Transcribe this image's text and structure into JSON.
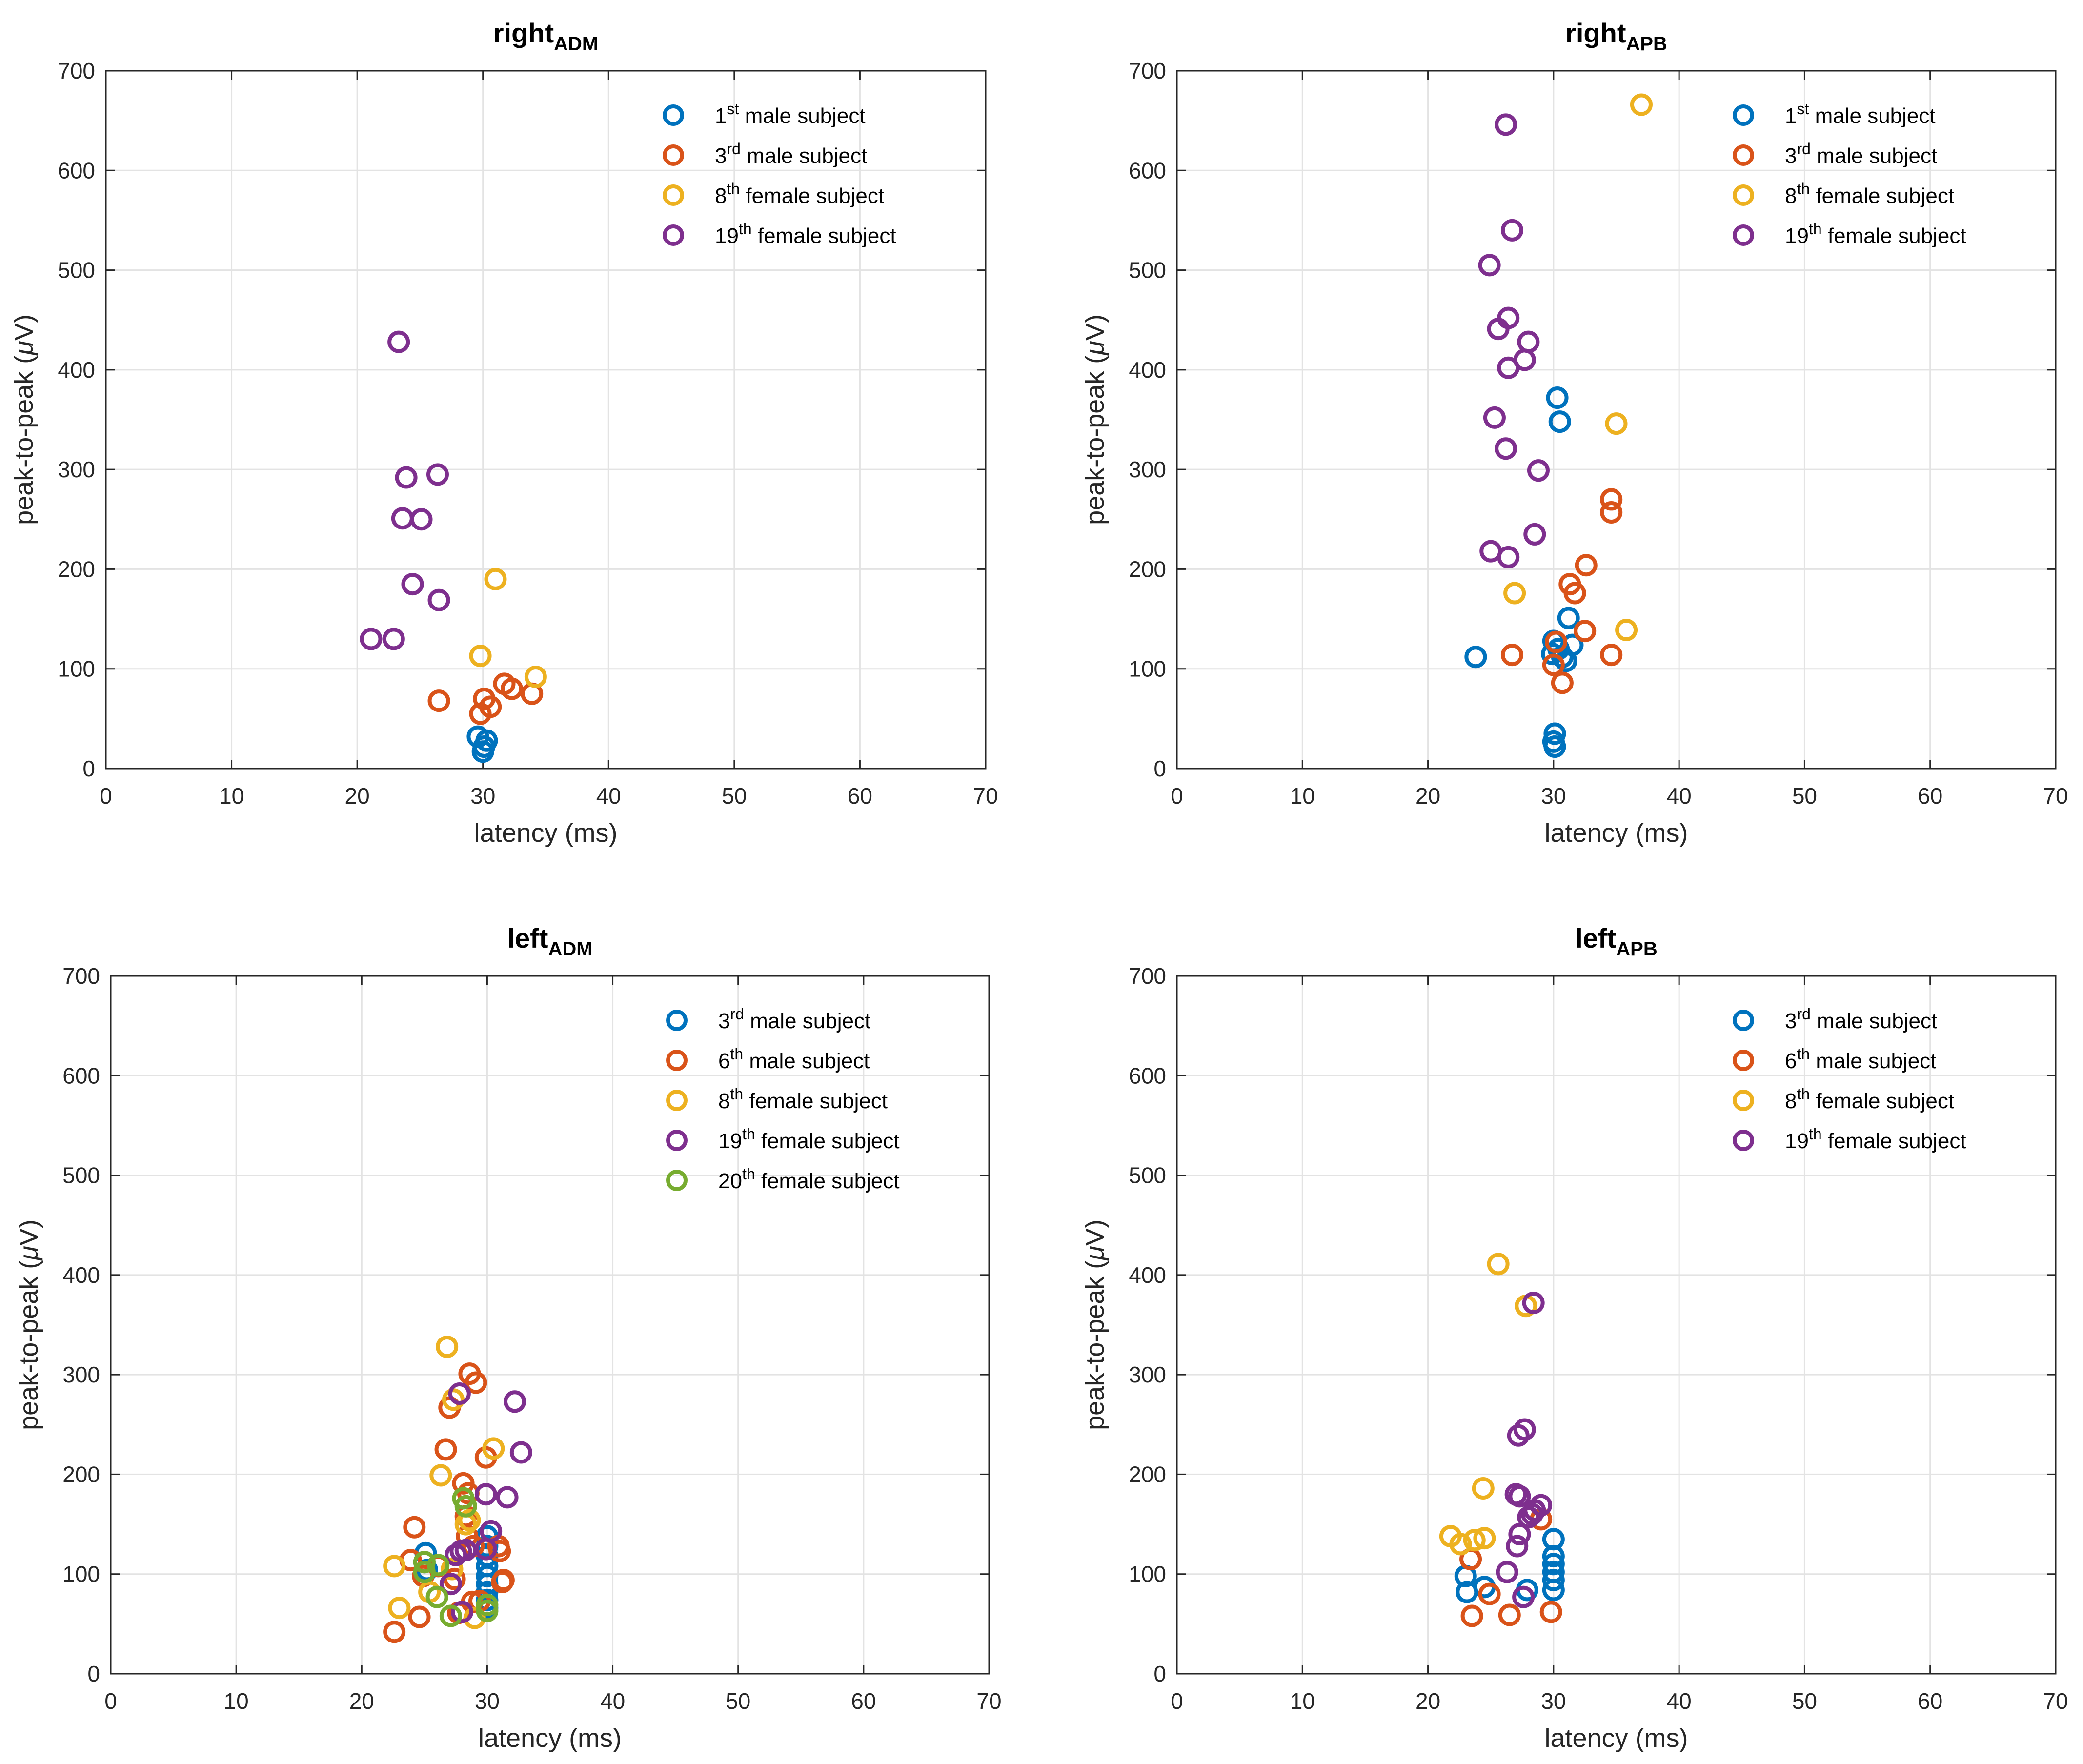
{
  "chart_data": [
    {
      "type": "scatter",
      "title": "right",
      "title_sub": "ADM",
      "xlabel": "latency (ms)",
      "ylabel_prefix": "peak-to-peak (",
      "ylabel_mu": "μ",
      "ylabel_suffix": "V)",
      "xlim": [
        0,
        70
      ],
      "ylim": [
        0,
        700
      ],
      "xticks": [
        0,
        10,
        20,
        30,
        40,
        50,
        60,
        70
      ],
      "yticks": [
        0,
        100,
        200,
        300,
        400,
        500,
        600,
        700
      ],
      "grid": true,
      "legend_position": "top-right",
      "series": [
        {
          "num": "1",
          "ord": "st",
          "label": "male subject",
          "color": "#0072BD",
          "points": [
            [
              29.6,
              32
            ],
            [
              30.1,
              22
            ],
            [
              30.0,
              17
            ],
            [
              30.3,
              28
            ]
          ]
        },
        {
          "num": "3",
          "ord": "rd",
          "label": "male subject",
          "color": "#D95319",
          "points": [
            [
              26.5,
              68
            ],
            [
              29.8,
              55
            ],
            [
              30.1,
              70
            ],
            [
              30.6,
              62
            ],
            [
              31.7,
              85
            ],
            [
              32.3,
              80
            ],
            [
              33.9,
              75
            ]
          ]
        },
        {
          "num": "8",
          "ord": "th",
          "label": "female subject",
          "color": "#EDB120",
          "points": [
            [
              29.8,
              113
            ],
            [
              31.0,
              190
            ],
            [
              34.2,
              92
            ]
          ]
        },
        {
          "num": "19",
          "ord": "th",
          "label": "female subject",
          "color": "#7E2F8E",
          "points": [
            [
              23.3,
              428
            ],
            [
              23.9,
              292
            ],
            [
              26.4,
              295
            ],
            [
              23.6,
              251
            ],
            [
              25.1,
              250
            ],
            [
              24.4,
              185
            ],
            [
              26.5,
              169
            ],
            [
              21.1,
              130
            ],
            [
              22.9,
              130
            ]
          ]
        }
      ]
    },
    {
      "type": "scatter",
      "title": "right",
      "title_sub": "APB",
      "xlabel": "latency (ms)",
      "ylabel_prefix": "peak-to-peak (",
      "ylabel_mu": "μ",
      "ylabel_suffix": "V)",
      "xlim": [
        0,
        70
      ],
      "ylim": [
        0,
        700
      ],
      "xticks": [
        0,
        10,
        20,
        30,
        40,
        50,
        60,
        70
      ],
      "yticks": [
        0,
        100,
        200,
        300,
        400,
        500,
        600,
        700
      ],
      "grid": true,
      "legend_position": "top-right",
      "series": [
        {
          "num": "1",
          "ord": "st",
          "label": "male subject",
          "color": "#0072BD",
          "points": [
            [
              23.8,
              112
            ],
            [
              30.3,
              372
            ],
            [
              30.5,
              348
            ],
            [
              31.2,
              151
            ],
            [
              30.0,
              128
            ],
            [
              30.4,
              120
            ],
            [
              30.7,
              112
            ],
            [
              31.0,
              108
            ],
            [
              31.5,
              124
            ],
            [
              29.9,
              115
            ],
            [
              30.1,
              35
            ],
            [
              30.0,
              27
            ],
            [
              30.1,
              22
            ]
          ]
        },
        {
          "num": "3",
          "ord": "rd",
          "label": "male subject",
          "color": "#D95319",
          "points": [
            [
              34.6,
              270
            ],
            [
              34.6,
              257
            ],
            [
              32.6,
              204
            ],
            [
              31.3,
              185
            ],
            [
              31.7,
              176
            ],
            [
              32.5,
              138
            ],
            [
              30.2,
              127
            ],
            [
              26.7,
              114
            ],
            [
              34.6,
              114
            ],
            [
              30.0,
              104
            ],
            [
              30.7,
              86
            ]
          ]
        },
        {
          "num": "8",
          "ord": "th",
          "label": "female subject",
          "color": "#EDB120",
          "points": [
            [
              37.0,
              666
            ],
            [
              35.0,
              346
            ],
            [
              26.9,
              176
            ],
            [
              35.8,
              139
            ]
          ]
        },
        {
          "num": "19",
          "ord": "th",
          "label": "female subject",
          "color": "#7E2F8E",
          "points": [
            [
              26.2,
              646
            ],
            [
              26.7,
              540
            ],
            [
              24.9,
              505
            ],
            [
              26.4,
              452
            ],
            [
              25.6,
              441
            ],
            [
              28.0,
              428
            ],
            [
              27.7,
              410
            ],
            [
              26.4,
              402
            ],
            [
              25.3,
              352
            ],
            [
              26.2,
              321
            ],
            [
              28.8,
              299
            ],
            [
              28.5,
              235
            ],
            [
              25.0,
              218
            ],
            [
              26.4,
              212
            ]
          ]
        }
      ]
    },
    {
      "type": "scatter",
      "title": "left",
      "title_sub": "ADM",
      "xlabel": "latency (ms)",
      "ylabel_prefix": "peak-to-peak (",
      "ylabel_mu": "μ",
      "ylabel_suffix": "V)",
      "xlim": [
        0,
        70
      ],
      "ylim": [
        0,
        700
      ],
      "xticks": [
        0,
        10,
        20,
        30,
        40,
        50,
        60,
        70
      ],
      "yticks": [
        0,
        100,
        200,
        300,
        400,
        500,
        600,
        700
      ],
      "grid": true,
      "legend_position": "top-right",
      "series": [
        {
          "num": "3",
          "ord": "rd",
          "label": "male subject",
          "color": "#0072BD",
          "points": [
            [
              25.1,
              121
            ],
            [
              25.0,
              112
            ],
            [
              25.2,
              104
            ],
            [
              30.0,
              138
            ],
            [
              30.0,
              128
            ],
            [
              30.0,
              118
            ],
            [
              30.0,
              108
            ],
            [
              30.0,
              98
            ],
            [
              30.0,
              90
            ],
            [
              30.0,
              82
            ],
            [
              30.0,
              74
            ],
            [
              30.0,
              66
            ]
          ]
        },
        {
          "num": "6",
          "ord": "th",
          "label": "male subject",
          "color": "#D95319",
          "points": [
            [
              28.6,
              301
            ],
            [
              29.1,
              292
            ],
            [
              27.0,
              267
            ],
            [
              26.7,
              225
            ],
            [
              29.9,
              217
            ],
            [
              28.1,
              191
            ],
            [
              28.5,
              181
            ],
            [
              28.3,
              158
            ],
            [
              28.4,
              138
            ],
            [
              30.9,
              128
            ],
            [
              28.9,
              128
            ],
            [
              31.0,
              123
            ],
            [
              24.2,
              147
            ],
            [
              23.9,
              114
            ],
            [
              24.9,
              98
            ],
            [
              26.1,
              108
            ],
            [
              27.4,
              95
            ],
            [
              31.3,
              94
            ],
            [
              31.2,
              92
            ],
            [
              29.4,
              73
            ],
            [
              28.8,
              72
            ],
            [
              24.6,
              57
            ],
            [
              22.6,
              42
            ],
            [
              27.7,
              61
            ]
          ]
        },
        {
          "num": "8",
          "ord": "th",
          "label": "female subject",
          "color": "#EDB120",
          "points": [
            [
              26.8,
              328
            ],
            [
              27.3,
              275
            ],
            [
              30.5,
              226
            ],
            [
              26.3,
              199
            ],
            [
              28.3,
              150
            ],
            [
              28.6,
              154
            ],
            [
              22.6,
              108
            ],
            [
              25.4,
              82
            ],
            [
              23.0,
              66
            ],
            [
              29.0,
              56
            ],
            [
              27.2,
              105
            ]
          ]
        },
        {
          "num": "19",
          "ord": "th",
          "label": "female subject",
          "color": "#7E2F8E",
          "points": [
            [
              27.8,
              281
            ],
            [
              32.2,
              273
            ],
            [
              32.7,
              222
            ],
            [
              29.9,
              180
            ],
            [
              31.6,
              177
            ],
            [
              30.3,
              143
            ],
            [
              29.9,
              125
            ],
            [
              27.5,
              119
            ],
            [
              27.9,
              123
            ],
            [
              27.1,
              90
            ],
            [
              28.3,
              124
            ],
            [
              28.0,
              62
            ]
          ]
        },
        {
          "num": "20",
          "ord": "th",
          "label": "female subject",
          "color": "#77AC30",
          "points": [
            [
              28.1,
              176
            ],
            [
              28.3,
              168
            ],
            [
              25.0,
              112
            ],
            [
              26.1,
              109
            ],
            [
              25.0,
              102
            ],
            [
              26.0,
              77
            ],
            [
              27.1,
              58
            ],
            [
              30.0,
              63
            ],
            [
              30.0,
              69
            ]
          ]
        }
      ]
    },
    {
      "type": "scatter",
      "title": "left",
      "title_sub": "APB",
      "xlabel": "latency (ms)",
      "ylabel_prefix": "peak-to-peak (",
      "ylabel_mu": "μ",
      "ylabel_suffix": "V)",
      "xlim": [
        0,
        70
      ],
      "ylim": [
        0,
        700
      ],
      "xticks": [
        0,
        10,
        20,
        30,
        40,
        50,
        60,
        70
      ],
      "yticks": [
        0,
        100,
        200,
        300,
        400,
        500,
        600,
        700
      ],
      "grid": true,
      "legend_position": "top-right",
      "series": [
        {
          "num": "3",
          "ord": "rd",
          "label": "male subject",
          "color": "#0072BD",
          "points": [
            [
              23.0,
              98
            ],
            [
              23.1,
              82
            ],
            [
              24.5,
              87
            ],
            [
              27.9,
              84
            ],
            [
              30.0,
              135
            ],
            [
              30.0,
              118
            ],
            [
              30.0,
              110
            ],
            [
              30.0,
              102
            ],
            [
              30.0,
              94
            ],
            [
              30.0,
              84
            ]
          ]
        },
        {
          "num": "6",
          "ord": "th",
          "label": "male subject",
          "color": "#D95319",
          "points": [
            [
              23.4,
              115
            ],
            [
              24.9,
              80
            ],
            [
              23.5,
              58
            ],
            [
              26.5,
              59
            ],
            [
              29.0,
              155
            ],
            [
              29.8,
              62
            ]
          ]
        },
        {
          "num": "8",
          "ord": "th",
          "label": "female subject",
          "color": "#EDB120",
          "points": [
            [
              25.6,
              411
            ],
            [
              27.8,
              369
            ],
            [
              24.4,
              186
            ],
            [
              21.8,
              138
            ],
            [
              22.6,
              130
            ],
            [
              23.7,
              134
            ],
            [
              24.5,
              136
            ]
          ]
        },
        {
          "num": "19",
          "ord": "th",
          "label": "female subject",
          "color": "#7E2F8E",
          "points": [
            [
              28.4,
              372
            ],
            [
              27.2,
              239
            ],
            [
              27.7,
              245
            ],
            [
              27.0,
              180
            ],
            [
              27.3,
              178
            ],
            [
              29.0,
              169
            ],
            [
              28.5,
              164
            ],
            [
              28.0,
              157
            ],
            [
              28.3,
              160
            ],
            [
              27.3,
              140
            ],
            [
              27.1,
              128
            ],
            [
              26.3,
              102
            ],
            [
              27.6,
              77
            ]
          ]
        }
      ]
    }
  ]
}
